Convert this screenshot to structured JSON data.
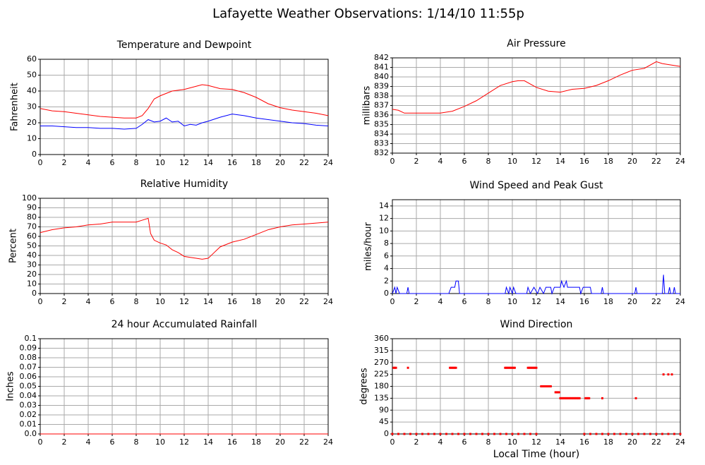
{
  "title": "Lafayette Weather Observations: 1/14/10 11:55p",
  "chart_data": [
    {
      "type": "line",
      "title": "Temperature and Dewpoint",
      "ylabel": "Fahrenheit",
      "x": [
        0,
        1,
        2,
        3,
        4,
        5,
        6,
        7,
        8,
        8.5,
        9,
        9.5,
        10,
        10.5,
        11,
        11.5,
        12,
        12.5,
        13,
        13.5,
        14,
        15,
        16,
        17,
        18,
        19,
        20,
        21,
        22,
        23,
        24
      ],
      "series": [
        {
          "color": "#ff0000",
          "values": [
            29,
            27.5,
            27,
            26,
            25,
            24,
            23.5,
            23,
            23,
            24.5,
            29,
            35,
            37,
            38.5,
            40,
            40.5,
            41,
            42,
            43,
            44,
            43.5,
            41.5,
            41,
            39,
            36,
            32,
            29.5,
            28,
            27,
            26,
            24.5
          ]
        },
        {
          "color": "#0000ff",
          "values": [
            18,
            18,
            17.5,
            17,
            17,
            16.5,
            16.5,
            16,
            16.5,
            19,
            22,
            20.5,
            21,
            23,
            20.5,
            21,
            18,
            19,
            18.5,
            20,
            21,
            23.5,
            25.5,
            24.5,
            23,
            22,
            21,
            20,
            19.5,
            18.5,
            18
          ]
        }
      ],
      "xlim": [
        0,
        24
      ],
      "xticks": [
        0,
        2,
        4,
        6,
        8,
        10,
        12,
        14,
        16,
        18,
        20,
        22,
        24
      ],
      "ylim": [
        0,
        60
      ],
      "yticks": [
        0,
        10,
        20,
        30,
        40,
        50,
        60
      ],
      "grid": true
    },
    {
      "type": "line",
      "title": "Air Pressure",
      "ylabel": "millibars",
      "x": [
        0,
        0.5,
        1,
        2,
        3,
        4,
        5,
        6,
        7,
        8,
        9,
        10,
        10.5,
        11,
        12,
        13,
        14,
        15,
        16,
        17,
        18,
        19,
        20,
        21,
        22,
        22.5,
        23,
        24
      ],
      "values": [
        836.6,
        836.5,
        836.2,
        836.2,
        836.2,
        836.2,
        836.4,
        836.9,
        837.5,
        838.3,
        839.1,
        839.5,
        839.6,
        839.6,
        838.9,
        838.5,
        838.4,
        838.7,
        838.8,
        839.1,
        839.6,
        840.2,
        840.7,
        840.9,
        841.6,
        841.4,
        841.3,
        841.1
      ],
      "color": "#ff0000",
      "xlim": [
        0,
        24
      ],
      "xticks": [
        0,
        2,
        4,
        6,
        8,
        10,
        12,
        14,
        16,
        18,
        20,
        22,
        24
      ],
      "ylim": [
        832,
        842
      ],
      "yticks": [
        832,
        833,
        834,
        835,
        836,
        837,
        838,
        839,
        840,
        841,
        842
      ],
      "grid": true
    },
    {
      "type": "line",
      "title": "Relative Humidity",
      "ylabel": "Percent",
      "x": [
        0,
        1,
        2,
        3,
        4,
        5,
        6,
        7,
        8,
        8.5,
        9,
        9.2,
        9.5,
        10,
        10.5,
        11,
        11.5,
        12,
        12.5,
        13,
        13.5,
        14,
        14.5,
        15,
        16,
        17,
        18,
        19,
        20,
        21,
        22,
        23,
        24
      ],
      "values": [
        64,
        67,
        69,
        70,
        72,
        73,
        75,
        75,
        75,
        77,
        79,
        63,
        56,
        53,
        51,
        46,
        43,
        39,
        38,
        37,
        36,
        37,
        43,
        49,
        54,
        57,
        62,
        67,
        70,
        72,
        73,
        74,
        75
      ],
      "color": "#ff0000",
      "xlim": [
        0,
        24
      ],
      "xticks": [
        0,
        2,
        4,
        6,
        8,
        10,
        12,
        14,
        16,
        18,
        20,
        22,
        24
      ],
      "ylim": [
        0,
        100
      ],
      "yticks": [
        0,
        10,
        20,
        30,
        40,
        50,
        60,
        70,
        80,
        90,
        100
      ],
      "grid": true
    },
    {
      "type": "line",
      "title": "Wind Speed and Peak Gust",
      "ylabel": "miles/hour",
      "x": [
        0,
        0.2,
        0.3,
        0.4,
        0.6,
        1.2,
        1.3,
        1.4,
        4.7,
        4.9,
        5.2,
        5.3,
        5.5,
        5.6,
        9.4,
        9.5,
        9.7,
        9.8,
        10,
        10.1,
        10.3,
        11.2,
        11.3,
        11.5,
        11.8,
        12.1,
        12.3,
        12.6,
        12.8,
        13.2,
        13.3,
        13.5,
        14,
        14.1,
        14.3,
        14.5,
        14.6,
        15.6,
        15.7,
        15.9,
        16.5,
        16.6,
        17.4,
        17.5,
        17.6,
        20.2,
        20.3,
        20.4,
        22.5,
        22.6,
        22.7,
        23,
        23.1,
        23.2,
        23.4,
        23.5,
        23.6,
        24
      ],
      "values": [
        0,
        1,
        0,
        1,
        0,
        0,
        1,
        0,
        0,
        1,
        1,
        2,
        2,
        0,
        0,
        1,
        0,
        1,
        0,
        1,
        0,
        0,
        1,
        0,
        1,
        0,
        1,
        0,
        1,
        1,
        0,
        1,
        1,
        2,
        1,
        2,
        1,
        1,
        0,
        1,
        1,
        0,
        0,
        1,
        0,
        0,
        1,
        0,
        0,
        3,
        0,
        0,
        1,
        0,
        0,
        1,
        0,
        0
      ],
      "color": "#0000ff",
      "xlim": [
        0,
        24
      ],
      "xticks": [
        0,
        2,
        4,
        6,
        8,
        10,
        12,
        14,
        16,
        18,
        20,
        22,
        24
      ],
      "ylim": [
        0,
        15
      ],
      "yticks": [
        0,
        2,
        4,
        6,
        8,
        10,
        12,
        14
      ],
      "grid": true
    },
    {
      "type": "line",
      "title": "24 hour Accumulated Rainfall",
      "ylabel": "Inches",
      "x": [
        0,
        24
      ],
      "values": [
        0,
        0
      ],
      "color": "#ff0000",
      "xlim": [
        0,
        24
      ],
      "xticks": [
        0,
        2,
        4,
        6,
        8,
        10,
        12,
        14,
        16,
        18,
        20,
        22,
        24
      ],
      "ylim": [
        0,
        0.1
      ],
      "yticks": [
        {
          "value": 0,
          "label": "0.0"
        },
        0.01,
        0.02,
        0.03,
        0.04,
        0.05,
        0.06,
        0.07,
        0.08,
        0.09,
        {
          "value": 0.1,
          "label": "0.1"
        }
      ],
      "grid": true
    },
    {
      "type": "scatter",
      "title": "Wind Direction",
      "ylabel": "degrees",
      "xlabel": "Local Time (hour)",
      "x": [
        0.1,
        0.2,
        0.3,
        1.3,
        4.8,
        4.9,
        5.0,
        5.1,
        5.2,
        5.3,
        9.4,
        9.5,
        9.6,
        9.7,
        9.8,
        9.9,
        10.0,
        10.1,
        10.2,
        11.3,
        11.4,
        11.5,
        11.6,
        11.7,
        11.8,
        11.9,
        12.0,
        12.4,
        12.5,
        12.6,
        12.7,
        12.8,
        12.9,
        13.0,
        13.1,
        13.2,
        13.6,
        13.7,
        13.8,
        13.9,
        14.0,
        14.1,
        14.2,
        14.3,
        14.4,
        14.5,
        14.6,
        14.7,
        14.8,
        14.9,
        15.0,
        15.1,
        15.2,
        15.3,
        15.4,
        15.5,
        15.6,
        16.1,
        16.2,
        16.3,
        16.4,
        17.5,
        20.3,
        22.6,
        23.0,
        23.3,
        0,
        0.5,
        1,
        1.5,
        2,
        2.5,
        3,
        3.5,
        4,
        4.5,
        5,
        5.5,
        6,
        6.5,
        7,
        7.5,
        8,
        8.5,
        9,
        9.5,
        10,
        10.5,
        11,
        11.5,
        12,
        16,
        16.5,
        17,
        17.5,
        18,
        18.5,
        19,
        19.5,
        20,
        20.5,
        21,
        21.5,
        22,
        22.5,
        23,
        23.5,
        24
      ],
      "values": [
        250,
        250,
        250,
        250,
        250,
        250,
        250,
        250,
        250,
        250,
        250,
        250,
        250,
        250,
        250,
        250,
        250,
        250,
        250,
        250,
        250,
        250,
        250,
        250,
        250,
        250,
        250,
        180,
        180,
        180,
        180,
        180,
        180,
        180,
        180,
        180,
        157.5,
        157.5,
        157.5,
        157.5,
        135,
        135,
        135,
        135,
        135,
        135,
        135,
        135,
        135,
        135,
        135,
        135,
        135,
        135,
        135,
        135,
        135,
        135,
        135,
        135,
        135,
        135,
        135,
        225,
        225,
        225,
        0,
        0,
        0,
        0,
        0,
        0,
        0,
        0,
        0,
        0,
        0,
        0,
        0,
        0,
        0,
        0,
        0,
        0,
        0,
        0,
        0,
        0,
        0,
        0,
        0,
        0,
        0,
        0,
        0,
        0,
        0,
        0,
        0,
        0,
        0,
        0,
        0,
        0,
        0,
        0,
        0,
        0
      ],
      "color": "#ff0000",
      "xlim": [
        0,
        24
      ],
      "xticks": [
        0,
        2,
        4,
        6,
        8,
        10,
        12,
        14,
        16,
        18,
        20,
        22,
        24
      ],
      "ylim": [
        0,
        360
      ],
      "yticks": [
        0,
        45,
        90,
        135,
        180,
        225,
        270,
        315,
        360
      ],
      "grid": true
    }
  ]
}
